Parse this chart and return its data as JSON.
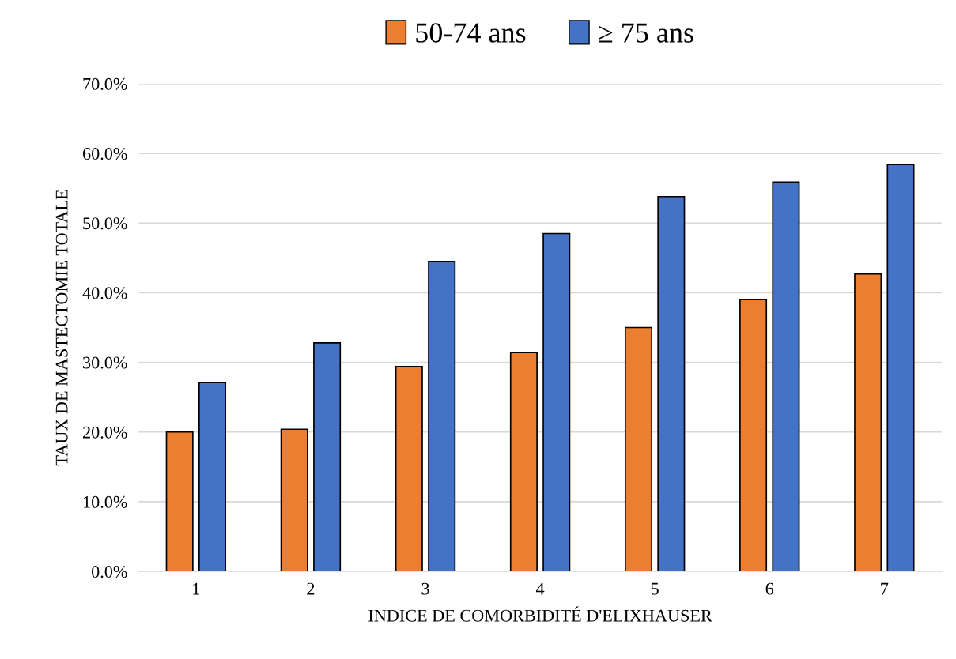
{
  "chart_data": {
    "type": "bar",
    "xlabel": "INDICE DE COMORBIDITÉ D'ELIXHAUSER",
    "ylabel": "TAUX DE MASTECTOMIE TOTALE",
    "categories": [
      "1",
      "2",
      "3",
      "4",
      "5",
      "6",
      "7"
    ],
    "series": [
      {
        "name": "50-74 ans",
        "color": "#ed7d31",
        "values": [
          20.0,
          20.4,
          29.4,
          31.4,
          35.0,
          39.0,
          42.7
        ]
      },
      {
        "name": "≥ 75 ans",
        "color": "#4472c4",
        "values": [
          27.1,
          32.8,
          44.5,
          48.5,
          53.8,
          55.9,
          58.4
        ]
      }
    ],
    "ylim": [
      0,
      70
    ],
    "yticks": [
      {
        "value": 0,
        "label": "0.0%"
      },
      {
        "value": 10,
        "label": "10.0%"
      },
      {
        "value": 20,
        "label": "20.0%"
      },
      {
        "value": 30,
        "label": "30.0%"
      },
      {
        "value": 40,
        "label": "40.0%"
      },
      {
        "value": 50,
        "label": "50.0%"
      },
      {
        "value": 60,
        "label": "60.0%"
      },
      {
        "value": 70,
        "label": "70.0%"
      }
    ],
    "grid": "y",
    "legend": "top"
  }
}
